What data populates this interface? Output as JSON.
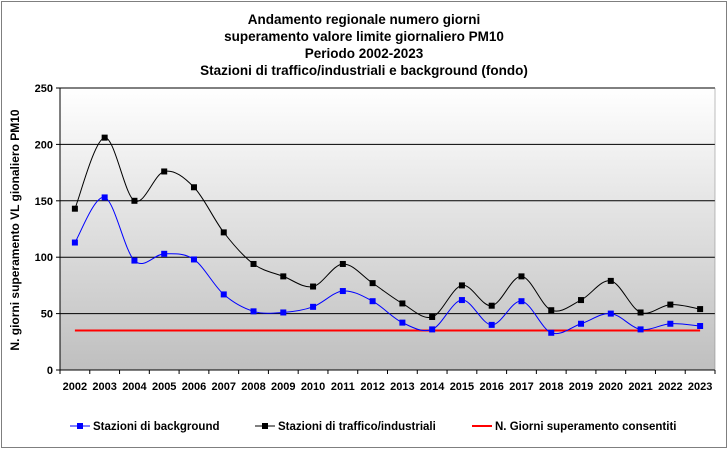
{
  "chart_data": {
    "type": "line",
    "title_lines": [
      "Andamento regionale numero giorni",
      "superamento valore limite giornaliero PM10",
      "Periodo 2002-2023",
      "Stazioni di traffico/industriali e background (fondo)"
    ],
    "ylabel": "N. giorni superamento VL gionaliero PM10",
    "xlabel": "",
    "ylim": [
      0,
      250
    ],
    "yticks": [
      0,
      50,
      100,
      150,
      200,
      250
    ],
    "grid": true,
    "legend_position": "bottom",
    "categories": [
      "2002",
      "2003",
      "2004",
      "2005",
      "2006",
      "2007",
      "2008",
      "2009",
      "2010",
      "2011",
      "2012",
      "2013",
      "2014",
      "2015",
      "2016",
      "2017",
      "2018",
      "2019",
      "2020",
      "2021",
      "2022",
      "2023"
    ],
    "series": [
      {
        "name": "Stazioni di background",
        "color": "#0000ff",
        "marker": "square",
        "smooth": true,
        "values": [
          113,
          153,
          97,
          103,
          98,
          67,
          52,
          51,
          56,
          70,
          61,
          42,
          36,
          62,
          40,
          61,
          33,
          41,
          50,
          36,
          41,
          39
        ]
      },
      {
        "name": "Stazioni di traffico/industriali",
        "color": "#000000",
        "marker": "square",
        "smooth": true,
        "values": [
          143,
          206,
          150,
          176,
          162,
          122,
          94,
          83,
          74,
          94,
          77,
          59,
          47,
          75,
          57,
          83,
          53,
          62,
          79,
          51,
          58,
          54
        ]
      },
      {
        "name": "N. Giorni superamento consentiti",
        "color": "#ff0000",
        "marker": "none",
        "smooth": false,
        "values": [
          35,
          35,
          35,
          35,
          35,
          35,
          35,
          35,
          35,
          35,
          35,
          35,
          35,
          35,
          35,
          35,
          35,
          35,
          35,
          35,
          35,
          35
        ]
      }
    ]
  }
}
